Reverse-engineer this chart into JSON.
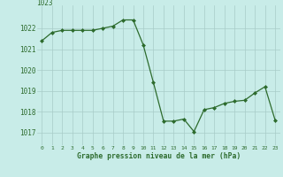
{
  "hours": [
    0,
    1,
    2,
    3,
    4,
    5,
    6,
    7,
    8,
    9,
    10,
    11,
    12,
    13,
    14,
    15,
    16,
    17,
    18,
    19,
    20,
    21,
    22,
    23
  ],
  "pressure": [
    1021.4,
    1021.8,
    1021.9,
    1021.9,
    1021.9,
    1021.9,
    1022.0,
    1022.1,
    1022.4,
    1022.4,
    1021.2,
    1019.4,
    1017.55,
    1017.55,
    1017.65,
    1017.05,
    1018.1,
    1018.2,
    1018.4,
    1018.5,
    1018.55,
    1018.9,
    1019.2,
    1017.6
  ],
  "line_color": "#2d6b2d",
  "marker": "D",
  "marker_size": 2.0,
  "background_color": "#c8ece8",
  "grid_color": "#a8ccc8",
  "xlabel": "Graphe pression niveau de la mer (hPa)",
  "xlabel_color": "#2d6b2d",
  "ylabel_ticks": [
    1017,
    1018,
    1019,
    1020,
    1021,
    1022
  ],
  "ylabel_tick_labels": [
    "1017",
    "1018",
    "1019",
    "1020",
    "1021",
    "1022"
  ],
  "ylim": [
    1016.4,
    1023.1
  ],
  "xlim": [
    -0.5,
    23.5
  ],
  "tick_label_color": "#2d6b2d",
  "top_clipped_label": "1023",
  "top_label_color": "#2d6b2d"
}
